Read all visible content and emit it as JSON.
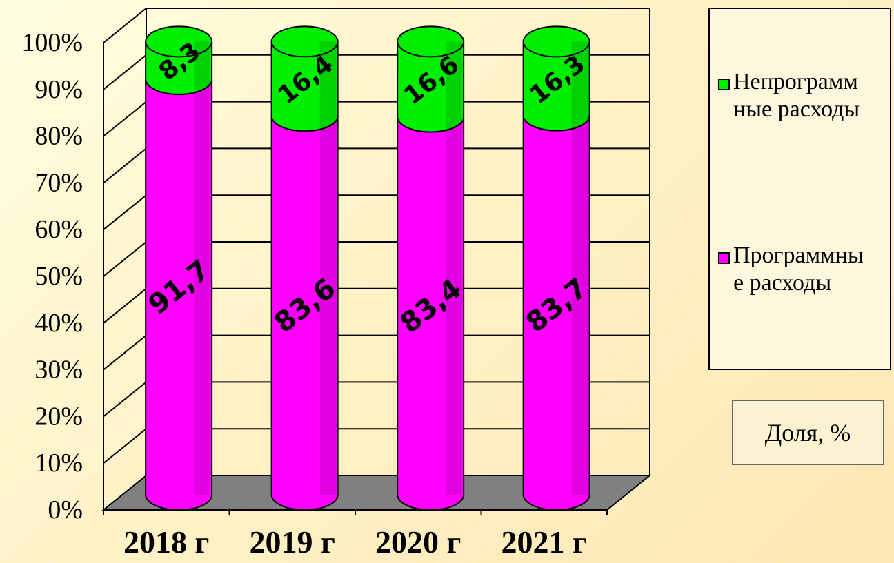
{
  "chart_data": {
    "type": "bar",
    "stacked": true,
    "percent_stacked": true,
    "style": "3d-cylinder",
    "categories": [
      "2018 г",
      "2019 г",
      "2020 г",
      "2021 г"
    ],
    "series": [
      {
        "name": "Программные расходы",
        "values": [
          91.7,
          83.6,
          83.4,
          83.7
        ],
        "labels": [
          "91,7",
          "83,6",
          "83,4",
          "83,7"
        ],
        "color": "#ff00ff"
      },
      {
        "name": "Непрограммные расходы",
        "values": [
          8.3,
          16.4,
          16.6,
          16.3
        ],
        "labels": [
          "8,3",
          "16,4",
          "16,6",
          "16,3"
        ],
        "color": "#00ee00"
      }
    ],
    "yticks": [
      "0%",
      "10%",
      "20%",
      "30%",
      "40%",
      "50%",
      "60%",
      "70%",
      "80%",
      "90%",
      "100%"
    ],
    "ylim": [
      0,
      100
    ],
    "grid": true,
    "legend_position": "right",
    "floor_color": "#808080"
  },
  "legend": {
    "items": [
      {
        "label": "Непрограммные расходы",
        "color": "#00ee00"
      },
      {
        "label": "Программные расходы",
        "color": "#ff00ff"
      }
    ]
  },
  "unit_label": "Доля, %"
}
